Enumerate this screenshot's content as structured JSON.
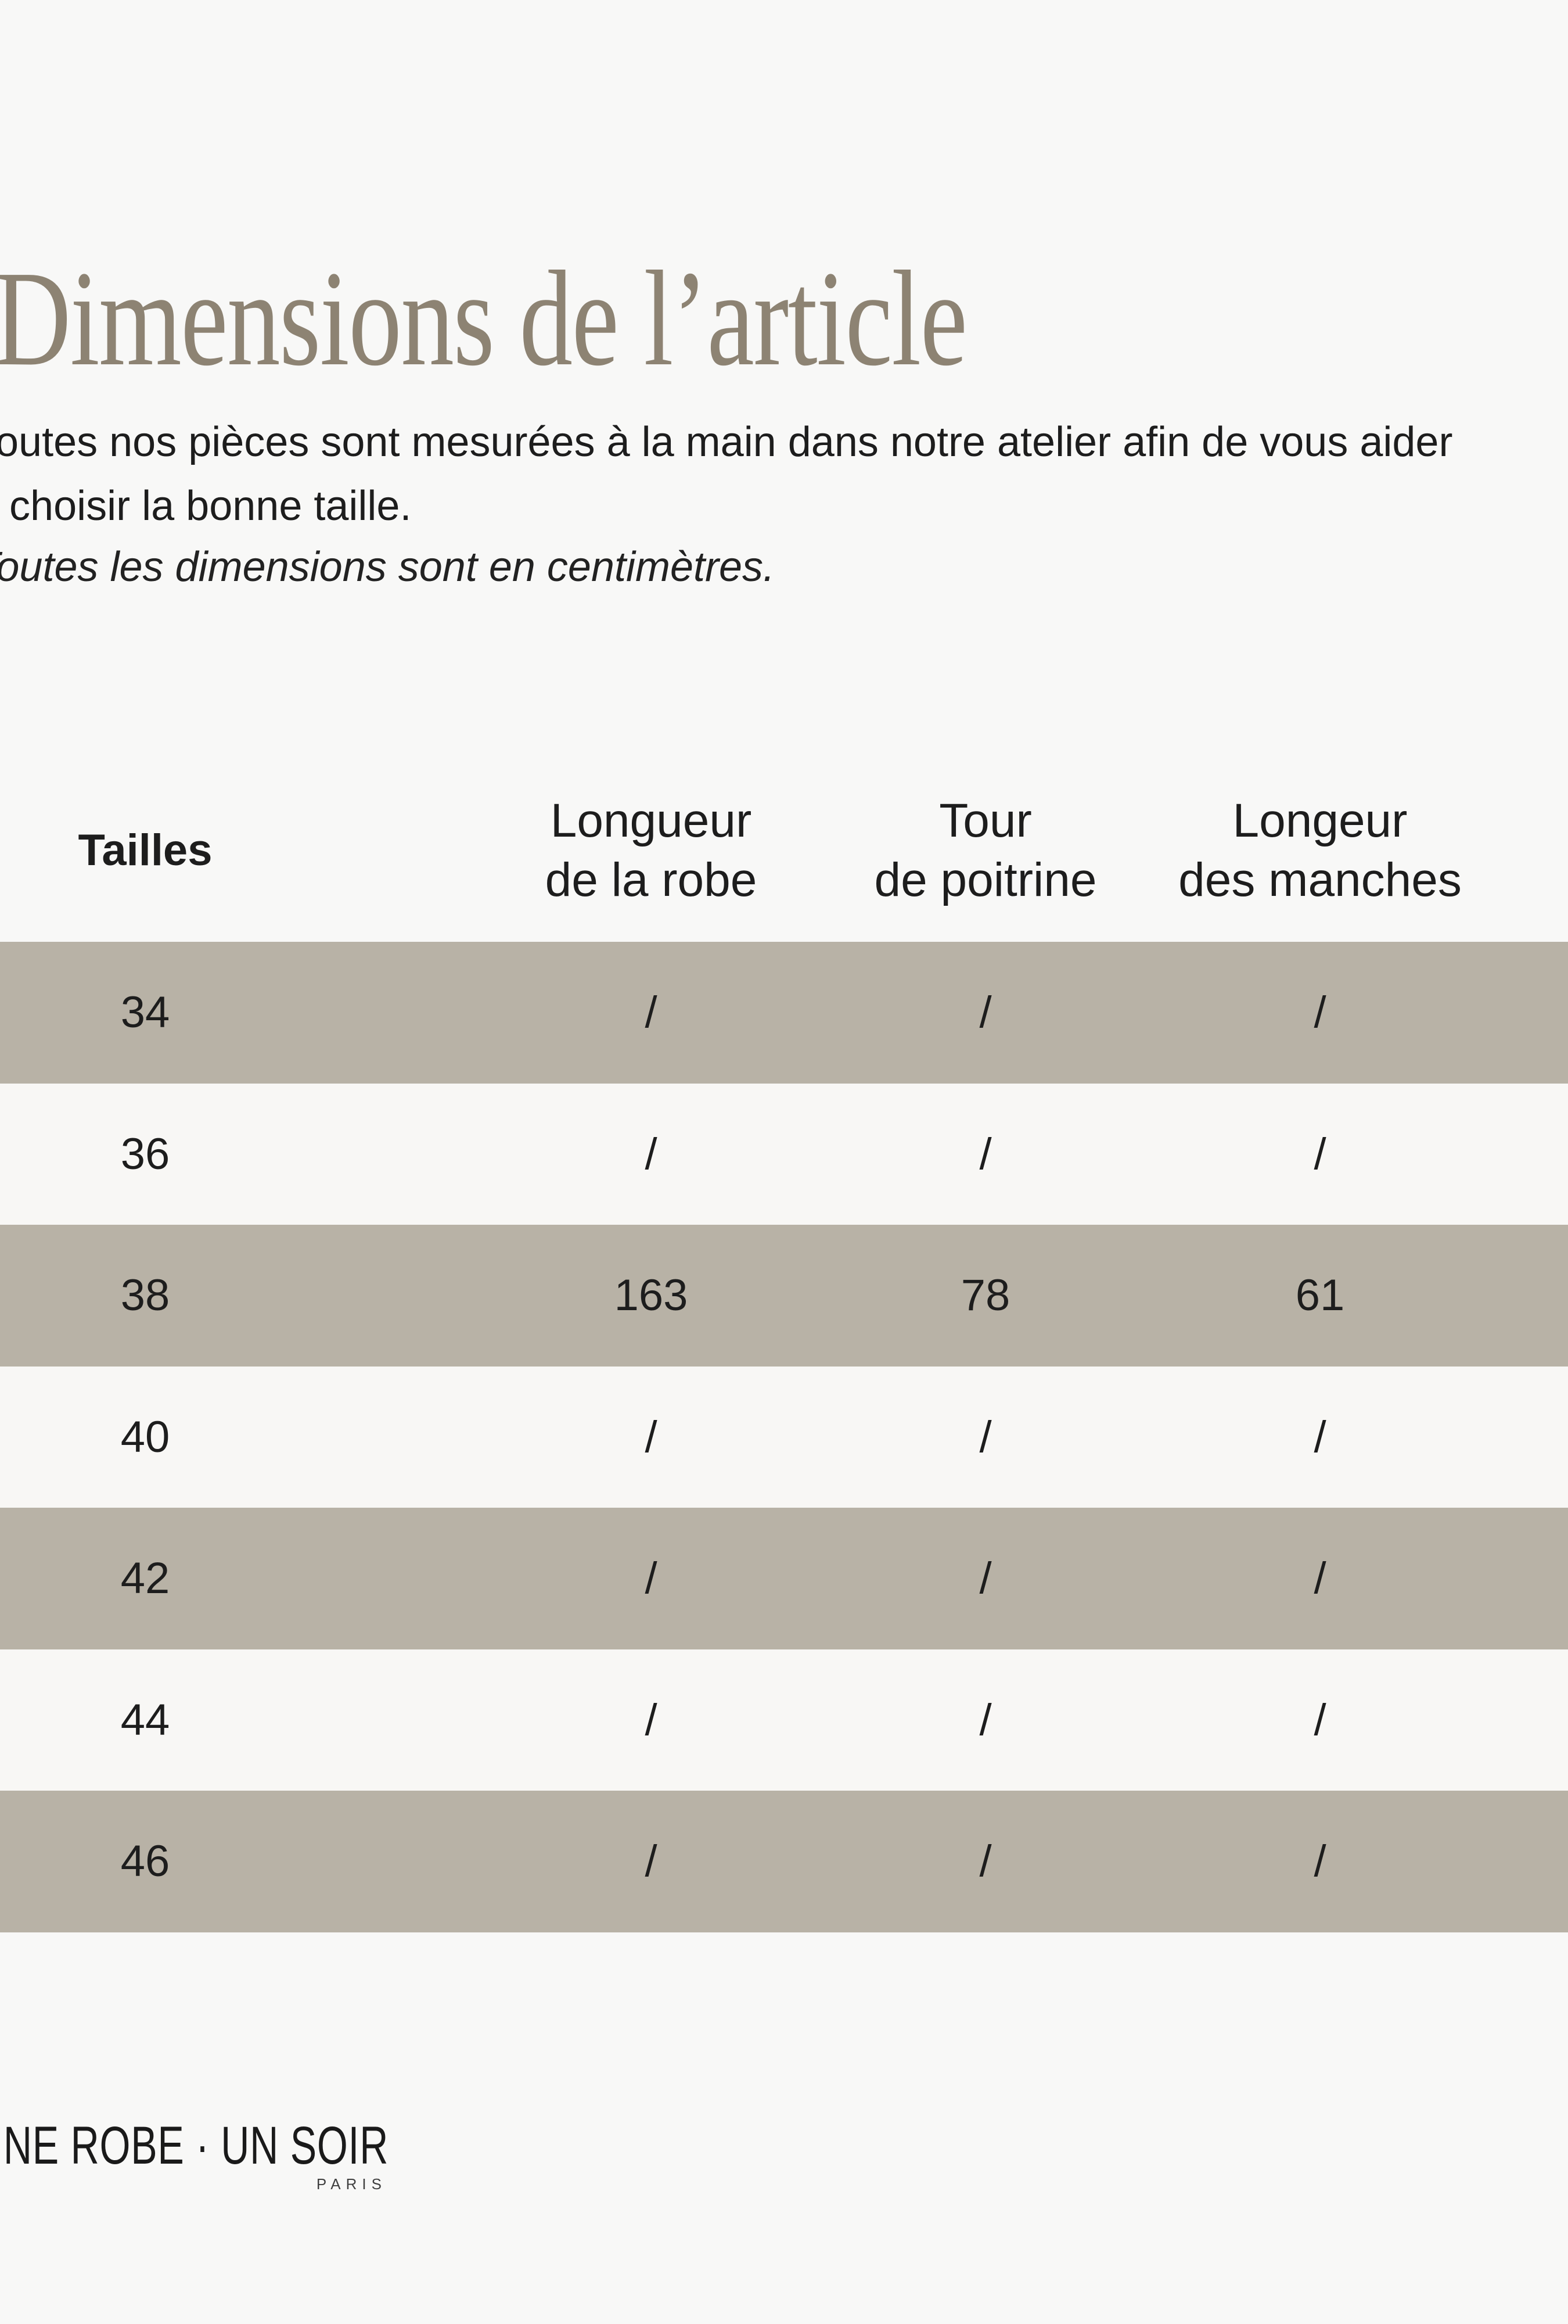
{
  "page": {
    "background_color": "#f8f8f7",
    "title": "Dimensions de l’article",
    "title_color": "#8d8373"
  },
  "intro": {
    "line1": "Toutes nos pièces sont mesurées à la main dans notre atelier afin de vous aider",
    "line2": "à choisir la bonne taille.",
    "note": "Toutes les dimensions sont en centimètres."
  },
  "table": {
    "stripe_color": "#b8b2a6",
    "alt_row_color": "#f8f7f5",
    "columns": {
      "sizes_label": "Tailles",
      "col1": {
        "line1": "Longueur",
        "line2": "de la robe"
      },
      "col2": {
        "line1": "Tour",
        "line2": "de poitrine"
      },
      "col3": {
        "line1": "Longeur",
        "line2": "des manches"
      }
    },
    "rows": [
      {
        "size": "34",
        "values": [
          "/",
          "/",
          "/"
        ]
      },
      {
        "size": "36",
        "values": [
          "/",
          "/",
          "/"
        ]
      },
      {
        "size": "38",
        "values": [
          "163",
          "78",
          "61"
        ]
      },
      {
        "size": "40",
        "values": [
          "/",
          "/",
          "/"
        ]
      },
      {
        "size": "42",
        "values": [
          "/",
          "/",
          "/"
        ]
      },
      {
        "size": "44",
        "values": [
          "/",
          "/",
          "/"
        ]
      },
      {
        "size": "46",
        "values": [
          "/",
          "/",
          "/"
        ]
      }
    ]
  },
  "footer": {
    "brand": "UNE ROBE · UN SOIR",
    "brand_sub": "PARIS"
  }
}
